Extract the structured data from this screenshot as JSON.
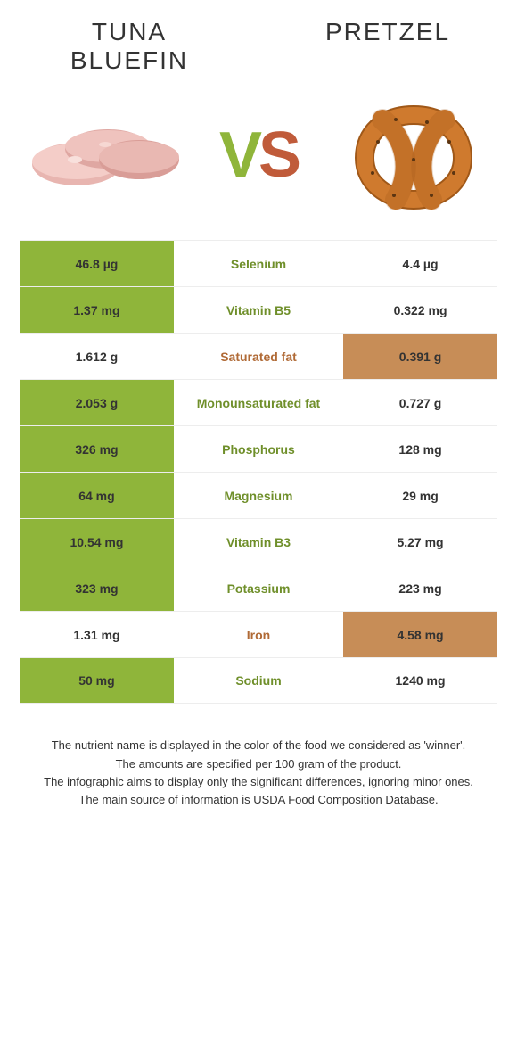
{
  "header": {
    "left_title_line1": "Tuna",
    "left_title_line2": "Bluefin",
    "right_title": "Pretzel",
    "vs_v": "V",
    "vs_s": "S"
  },
  "colors": {
    "green": "#8fb53a",
    "brown": "#c78d57",
    "text_green": "#6f8f2a",
    "text_brown": "#b06a36",
    "border": "#ededed",
    "background": "#ffffff"
  },
  "rows": [
    {
      "nutrient": "Selenium",
      "left": "46.8 µg",
      "right": "4.4 µg",
      "winner": "left"
    },
    {
      "nutrient": "Vitamin B5",
      "left": "1.37 mg",
      "right": "0.322 mg",
      "winner": "left"
    },
    {
      "nutrient": "Saturated fat",
      "left": "1.612 g",
      "right": "0.391 g",
      "winner": "right"
    },
    {
      "nutrient": "Monounsaturated fat",
      "left": "2.053 g",
      "right": "0.727 g",
      "winner": "left"
    },
    {
      "nutrient": "Phosphorus",
      "left": "326 mg",
      "right": "128 mg",
      "winner": "left"
    },
    {
      "nutrient": "Magnesium",
      "left": "64 mg",
      "right": "29 mg",
      "winner": "left"
    },
    {
      "nutrient": "Vitamin B3",
      "left": "10.54 mg",
      "right": "5.27 mg",
      "winner": "left"
    },
    {
      "nutrient": "Potassium",
      "left": "323 mg",
      "right": "223 mg",
      "winner": "left"
    },
    {
      "nutrient": "Iron",
      "left": "1.31 mg",
      "right": "4.58 mg",
      "winner": "right"
    },
    {
      "nutrient": "Sodium",
      "left": "50 mg",
      "right": "1240 mg",
      "winner": "left"
    }
  ],
  "footnotes": [
    "The nutrient name is displayed in the color of the food we considered as 'winner'.",
    "The amounts are specified per 100 gram of the product.",
    "The infographic aims to display only the significant differences, ignoring minor ones.",
    "The main source of information is USDA Food Composition Database."
  ]
}
